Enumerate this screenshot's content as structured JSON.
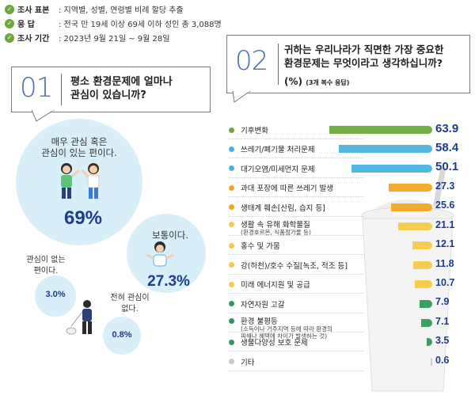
{
  "survey_info": [
    {
      "key": "조사 표본",
      "value": ": 지역별, 성별, 연령별 비례 할당 추출"
    },
    {
      "key": "응 답",
      "value": ": 전국 만 19세 이상 69세 이하 성인 총 3,088명"
    },
    {
      "key": "조사 기간",
      "value": ": 2023년 9월 21일 ~ 9월 28일"
    }
  ],
  "colors": {
    "accent": "#4a6fb5",
    "navy": "#1e3c8c",
    "green": "#6aaa3c",
    "blue": "#4bb3e0",
    "orange": "#f5a623",
    "yellow": "#f6c94a",
    "darkgreen": "#2e9a5a",
    "gray": "#c8c8c8"
  },
  "q1": {
    "number": "01",
    "title": "평소 환경문제에 얼마나\n관심이 있습니까?",
    "answers": [
      {
        "label": "매우 관심 혹은\n관심이 있는 편이다.",
        "percent": "69%",
        "value": 69
      },
      {
        "label": "보통이다.",
        "percent": "27.3%",
        "value": 27.3
      },
      {
        "label": "관심이 없는\n편이다.",
        "percent": "3.0%",
        "value": 3.0
      },
      {
        "label": "전혀 관심이\n없다.",
        "percent": "0.8%",
        "value": 0.8
      }
    ]
  },
  "q2": {
    "number": "02",
    "title": "귀하는 우리나라가 직면한 가장 중요한\n환경문제는 무엇이라고 생각하십니까?",
    "unit": "(%)",
    "note": "(3개 복수 응답)"
  },
  "chart_data": {
    "type": "bar",
    "orientation": "horizontal",
    "title": "귀하는 우리나라가 직면한 가장 중요한 환경문제는 무엇이라고 생각하십니까?",
    "unit": "(%)",
    "categories": [
      "기후변화",
      "쓰레기/폐기물 처리문제",
      "대기오염/미세먼지 문제",
      "과대 포장에 따른 쓰레기 발생",
      "생태계 훼손[산림, 습지 등]",
      "생활 속 유해 화학물질",
      "홍수 및 가뭄",
      "강(하천)/호수 수질[녹조, 적조 등]",
      "미래 에너지원 및 공급",
      "자연자원 고갈",
      "환경 불평등",
      "생물다양성 보호 문제",
      "기타"
    ],
    "sublabels": [
      "",
      "",
      "",
      "",
      "",
      "(환경호르몬, 식품첨가물 등)",
      "",
      "",
      "",
      "",
      "(소득이나 거주지역 등에 따라 환경의\n피해나 혜택에 차이가 발생하는 것)",
      "",
      ""
    ],
    "values": [
      63.9,
      58.4,
      50.1,
      27.3,
      25.6,
      21.1,
      12.1,
      11.8,
      10.7,
      7.9,
      7.1,
      3.5,
      0.6
    ],
    "value_labels": [
      "63.9",
      "58.4",
      "50.1",
      "27.3",
      "25.6",
      "21.1",
      "12.1",
      "11.8",
      "10.7",
      "7.9",
      "7.1",
      "3.5",
      "0.6"
    ],
    "bar_colors": [
      "#6aaa3c",
      "#4bb3e0",
      "#4bb3e0",
      "#f5a623",
      "#f5a623",
      "#f6c94a",
      "#f6c94a",
      "#f6c94a",
      "#f6c94a",
      "#2e9a5a",
      "#2e9a5a",
      "#2e9a5a",
      "#c8c8c8"
    ],
    "value_colors": [
      "#1e3c8c",
      "#1e3c8c",
      "#1e3c8c",
      "#1e3c8c",
      "#1e3c8c",
      "#1e3c8c",
      "#1e3c8c",
      "#1e3c8c",
      "#1e3c8c",
      "#1e3c8c",
      "#1e3c8c",
      "#1e3c8c",
      "#1e3c8c"
    ],
    "xlim": [
      0,
      70
    ]
  }
}
